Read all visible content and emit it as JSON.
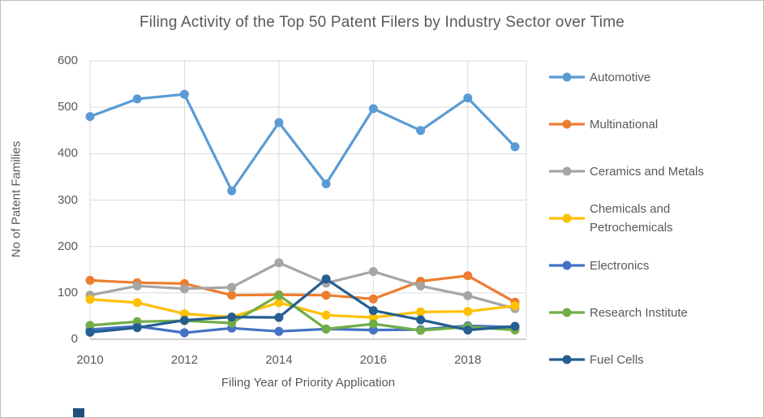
{
  "chart_data": {
    "type": "line",
    "title": "Filing Activity of the Top 50 Patent Filers by Industry Sector over Time",
    "xlabel": "Filing Year of Priority Application",
    "ylabel": "No of Patent Families",
    "x": [
      2010,
      2011,
      2012,
      2013,
      2014,
      2015,
      2016,
      2017,
      2018,
      2019
    ],
    "x_tick_labels": [
      "2010",
      "2012",
      "2014",
      "2016",
      "2018"
    ],
    "y_ticks": [
      0,
      100,
      200,
      300,
      400,
      500,
      600
    ],
    "ylim": [
      0,
      600
    ],
    "grid": true,
    "legend_position": "right",
    "series": [
      {
        "name": "Automotive",
        "color": "#5B9BD5",
        "values": [
          480,
          518,
          528,
          320,
          467,
          335,
          497,
          450,
          520,
          415
        ]
      },
      {
        "name": "Multinational",
        "color": "#ED7D31",
        "values": [
          127,
          122,
          120,
          95,
          96,
          95,
          87,
          125,
          137,
          80
        ]
      },
      {
        "name": "Ceramics and Metals",
        "color": "#A5A5A5",
        "values": [
          95,
          115,
          109,
          112,
          165,
          121,
          146,
          115,
          94,
          66
        ]
      },
      {
        "name": "Chemicals and Petrochemicals",
        "color": "#FFC000",
        "values": [
          86,
          79,
          55,
          48,
          79,
          52,
          47,
          59,
          60,
          72
        ]
      },
      {
        "name": "Electronics",
        "color": "#4472C4",
        "values": [
          21,
          28,
          14,
          24,
          17,
          22,
          20,
          21,
          29,
          26
        ]
      },
      {
        "name": "Research Institute",
        "color": "#70AD47",
        "values": [
          30,
          38,
          40,
          35,
          95,
          22,
          33,
          19,
          27,
          20
        ]
      },
      {
        "name": "Fuel Cells",
        "color": "#255E91",
        "values": [
          15,
          25,
          41,
          48,
          47,
          130,
          62,
          42,
          20,
          28
        ]
      }
    ]
  },
  "style": {
    "text_color": "#595959",
    "grid_color": "#D9D9D9",
    "axis_line_color": "#BFBFBF",
    "background": "#FFFFFF",
    "border_color": "#BFBFBF"
  },
  "decor": {
    "fragment_color": "#1F4E79"
  }
}
